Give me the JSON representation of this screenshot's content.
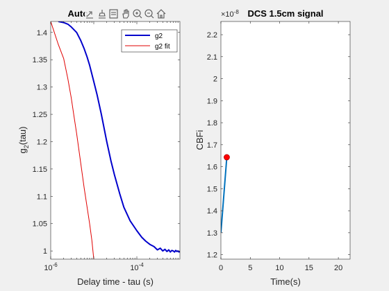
{
  "chart_data": [
    {
      "type": "line",
      "title": "Autc",
      "xlabel": "Delay time - tau (s)",
      "ylabel_main": "g",
      "ylabel_sub": "2",
      "ylabel_tail": "(tau)",
      "xscale": "log",
      "xlim": [
        1e-06,
        0.001
      ],
      "ylim": [
        0.985,
        1.42
      ],
      "xticks": [
        {
          "value": 1e-06,
          "base": "10",
          "exp": "-6"
        },
        {
          "value": 0.0001,
          "base": "10",
          "exp": "-4"
        }
      ],
      "yticks": [
        1,
        1.05,
        1.1,
        1.15,
        1.2,
        1.25,
        1.3,
        1.35,
        1.4
      ],
      "ytick_labels": [
        "1",
        "1.05",
        "1.1",
        "1.15",
        "1.2",
        "1.25",
        "1.3",
        "1.35",
        "1.4"
      ],
      "legend_position": "top-right",
      "series": [
        {
          "name": "g2",
          "color": "#0000cc",
          "x": [
            1.5e-06,
            2e-06,
            2.5e-06,
            3e-06,
            4e-06,
            5e-06,
            6e-06,
            7e-06,
            8e-06,
            1e-05,
            1.2e-05,
            1.5e-05,
            2e-05,
            2.5e-05,
            3e-05,
            4e-05,
            5e-05,
            7e-05,
            0.0001,
            0.00013,
            0.00016,
            0.0002,
            0.00025,
            0.0003,
            0.00035,
            0.0004,
            0.00045,
            0.0005,
            0.00055,
            0.0006,
            0.00065,
            0.0007,
            0.00075,
            0.0008,
            0.00085,
            0.0009,
            0.00095,
            0.001
          ],
          "y": [
            1.42,
            1.418,
            1.415,
            1.41,
            1.4,
            1.385,
            1.37,
            1.355,
            1.34,
            1.31,
            1.285,
            1.25,
            1.2,
            1.165,
            1.14,
            1.105,
            1.08,
            1.055,
            1.037,
            1.025,
            1.018,
            1.012,
            1.008,
            1.002,
            1.005,
            1.0,
            1.003,
            0.999,
            1.002,
            0.998,
            1.001,
            1.0,
            0.998,
            1.001,
            0.999,
            1.0,
            0.998,
            0.999
          ]
        },
        {
          "name": "g2 fit",
          "color": "#e00000",
          "x": [
            1e-06,
            1.5e-06,
            2e-06,
            2.5e-06,
            3e-06,
            3.5e-06,
            4e-06,
            5e-06,
            6e-06,
            7e-06,
            8e-06,
            9e-06,
            1e-05
          ],
          "y": [
            1.42,
            1.378,
            1.352,
            1.315,
            1.28,
            1.245,
            1.215,
            1.16,
            1.115,
            1.08,
            1.05,
            1.02,
            0.985
          ]
        }
      ]
    },
    {
      "type": "line",
      "title": "DCS 1.5cm signal",
      "xlabel": "Time(s)",
      "ylabel": "CBFi",
      "exponent_mark": "×10",
      "exponent_power": "-8",
      "xlim": [
        0,
        22
      ],
      "ylim": [
        1.18,
        2.26
      ],
      "xticks": [
        0,
        5,
        10,
        15,
        20
      ],
      "xtick_labels": [
        "0",
        "5",
        "10",
        "15",
        "20"
      ],
      "yticks": [
        1.2,
        1.3,
        1.4,
        1.5,
        1.6,
        1.7,
        1.8,
        1.9,
        2.0,
        2.1,
        2.2
      ],
      "ytick_labels": [
        "1.2",
        "1.3",
        "1.4",
        "1.5",
        "1.6",
        "1.7",
        "1.8",
        "1.9",
        "2",
        "2.1",
        "2.2"
      ],
      "series": [
        {
          "color": "#0072bd",
          "marker_color": "#ff0000",
          "x": [
            0,
            1
          ],
          "y": [
            1.3,
            1.643
          ]
        }
      ]
    }
  ],
  "toolbar": {
    "icons": [
      "export-icon",
      "brush-icon",
      "datatip-icon",
      "pan-icon",
      "zoom-in-icon",
      "zoom-out-icon",
      "home-icon"
    ]
  }
}
